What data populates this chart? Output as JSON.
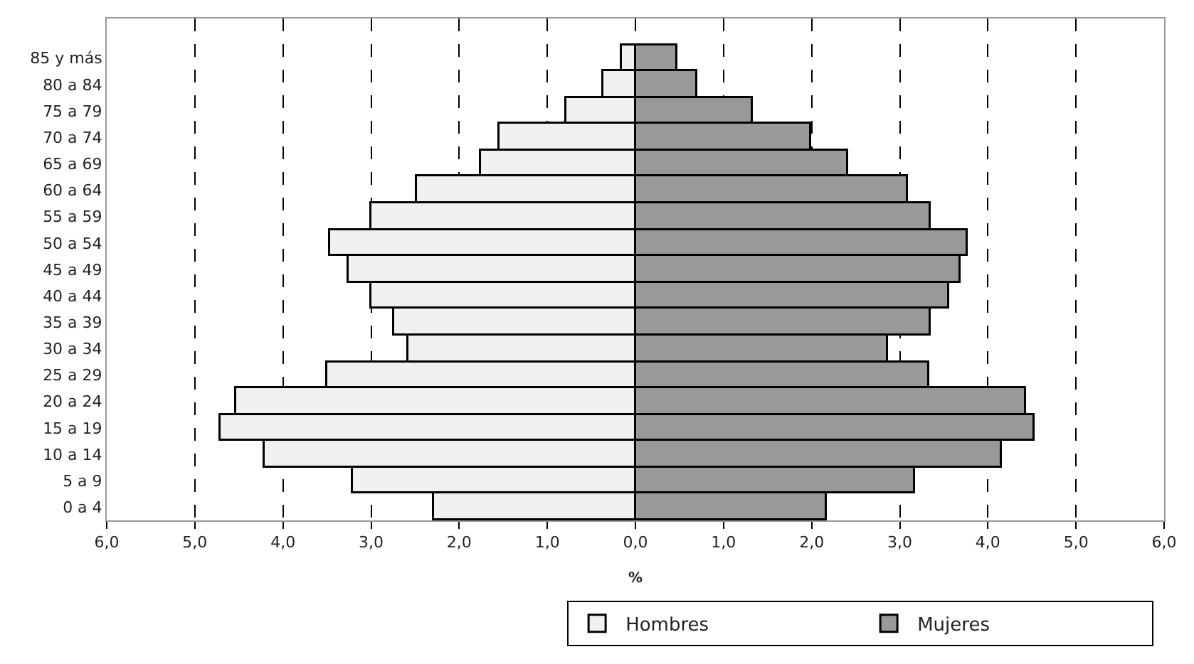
{
  "chart_data": {
    "type": "bar",
    "orientation": "horizontal",
    "stacked": true,
    "xlabel": "%",
    "categories": [
      "85 y más",
      "80 a 84",
      "75 a 79",
      "70 a 74",
      "65 a 69",
      "60 a 64",
      "55 a 59",
      "50 a 54",
      "45 a 49",
      "40 a 44",
      "35 a 39",
      "30 a 34",
      "25 a 29",
      "20 a 24",
      "15 a 19",
      "10 a 14",
      "5 a 9",
      "0 a 4"
    ],
    "series": [
      {
        "name": "Hombres",
        "color": "#f0f0f0",
        "values": [
          -0.16,
          -0.36,
          -0.78,
          -1.55,
          -1.76,
          -2.48,
          -3.0,
          -3.46,
          -3.25,
          -2.99,
          -2.74,
          -2.58,
          -3.49,
          -4.53,
          -4.7,
          -4.21,
          -3.2,
          -2.28
        ]
      },
      {
        "name": "Mujeres",
        "color": "#999999",
        "values": [
          0.47,
          0.71,
          1.34,
          1.99,
          2.41,
          3.1,
          3.35,
          3.77,
          3.69,
          3.56,
          3.35,
          2.87,
          3.33,
          4.44,
          4.53,
          4.16,
          3.17,
          2.18
        ]
      }
    ],
    "xlim": [
      -6,
      6
    ],
    "xticks": [
      {
        "value": -6,
        "label": "6,0"
      },
      {
        "value": -5,
        "label": "5,0"
      },
      {
        "value": -4,
        "label": "4,0"
      },
      {
        "value": -3,
        "label": "3,0"
      },
      {
        "value": -2,
        "label": "2,0"
      },
      {
        "value": -1,
        "label": "1,0"
      },
      {
        "value": 0,
        "label": "0,0"
      },
      {
        "value": 1,
        "label": "1,0"
      },
      {
        "value": 2,
        "label": "2,0"
      },
      {
        "value": 3,
        "label": "3,0"
      },
      {
        "value": 4,
        "label": "4,0"
      },
      {
        "value": 5,
        "label": "5,0"
      },
      {
        "value": 6,
        "label": "6,0"
      }
    ],
    "grid": "x",
    "legend": "bottom"
  }
}
